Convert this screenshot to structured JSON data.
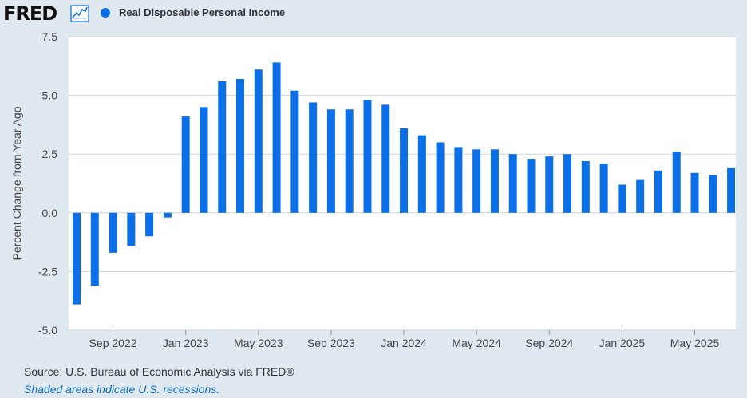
{
  "header": {
    "logo_text": "FRED",
    "logo_icon": "line-chart-icon",
    "legend_label": "Real Disposable Personal Income",
    "legend_color": "#0b6fe8"
  },
  "chart_data": {
    "type": "bar",
    "title": "",
    "xlabel": "",
    "ylabel": "Percent Change from Year Ago",
    "ylim": [
      -5.0,
      7.5
    ],
    "yticks": [
      "7.5",
      "5.0",
      "2.5",
      "0.0",
      "-2.5",
      "-5.0"
    ],
    "ytick_values": [
      7.5,
      5.0,
      2.5,
      0.0,
      -2.5,
      -5.0
    ],
    "xtick_labels": [
      "Sep 2022",
      "Jan 2023",
      "May 2023",
      "Sep 2023",
      "Jan 2024",
      "May 2024",
      "Sep 2024",
      "Jan 2025",
      "May 2025"
    ],
    "xtick_dates": [
      "2022-09",
      "2023-01",
      "2023-05",
      "2023-09",
      "2024-01",
      "2024-05",
      "2024-09",
      "2025-01",
      "2025-05"
    ],
    "grid": true,
    "bar_color": "#0b6fe8",
    "dates": [
      "2022-07",
      "2022-08",
      "2022-09",
      "2022-10",
      "2022-11",
      "2022-12",
      "2023-01",
      "2023-02",
      "2023-03",
      "2023-04",
      "2023-05",
      "2023-06",
      "2023-07",
      "2023-08",
      "2023-09",
      "2023-10",
      "2023-11",
      "2023-12",
      "2024-01",
      "2024-02",
      "2024-03",
      "2024-04",
      "2024-05",
      "2024-06",
      "2024-07",
      "2024-08",
      "2024-09",
      "2024-10",
      "2024-11",
      "2024-12",
      "2025-01",
      "2025-02",
      "2025-03",
      "2025-04",
      "2025-05",
      "2025-06",
      "2025-07"
    ],
    "values": [
      -3.9,
      -3.1,
      -1.7,
      -1.4,
      -1.0,
      -0.2,
      4.1,
      4.5,
      5.6,
      5.7,
      6.1,
      6.4,
      5.2,
      4.7,
      4.4,
      4.4,
      4.8,
      4.6,
      3.6,
      3.3,
      3.0,
      2.8,
      2.7,
      2.7,
      2.5,
      2.3,
      2.4,
      2.5,
      2.2,
      2.1,
      1.2,
      1.4,
      1.8,
      2.6,
      1.7,
      1.6,
      1.9
    ]
  },
  "footer": {
    "source": "Source: U.S. Bureau of Economic Analysis via FRED®",
    "recession_note": "Shaded areas indicate U.S. recessions."
  }
}
